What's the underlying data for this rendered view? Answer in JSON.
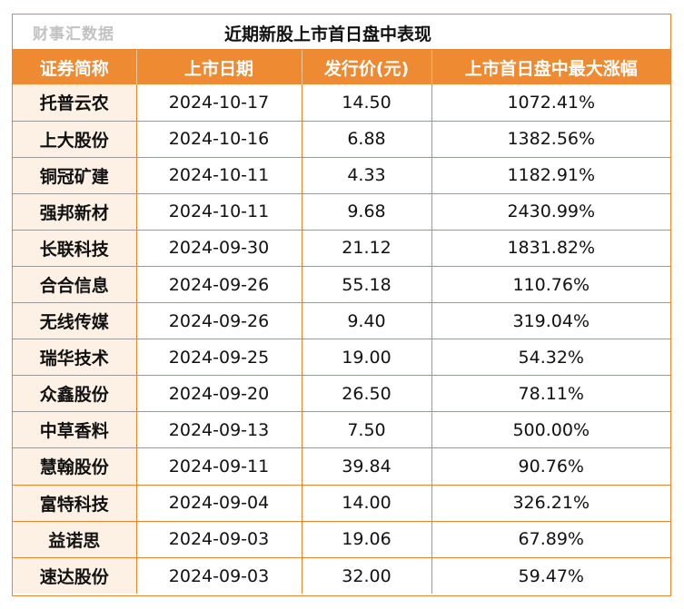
{
  "header": {
    "source": "财事汇数据",
    "title": "近期新股上市首日盘中表现"
  },
  "columns": [
    "证券简称",
    "上市日期",
    "发行价(元)",
    "上市首日盘中最大涨幅"
  ],
  "rows": [
    {
      "name": "托普云农",
      "date": "2024-10-17",
      "price": "14.50",
      "max_gain": "1072.41%"
    },
    {
      "name": "上大股份",
      "date": "2024-10-16",
      "price": "6.88",
      "max_gain": "1382.56%"
    },
    {
      "name": "铜冠矿建",
      "date": "2024-10-11",
      "price": "4.33",
      "max_gain": "1182.91%"
    },
    {
      "name": "强邦新材",
      "date": "2024-10-11",
      "price": "9.68",
      "max_gain": "2430.99%"
    },
    {
      "name": "长联科技",
      "date": "2024-09-30",
      "price": "21.12",
      "max_gain": "1831.82%"
    },
    {
      "name": "合合信息",
      "date": "2024-09-26",
      "price": "55.18",
      "max_gain": "110.76%"
    },
    {
      "name": "无线传媒",
      "date": "2024-09-26",
      "price": "9.40",
      "max_gain": "319.04%"
    },
    {
      "name": "瑞华技术",
      "date": "2024-09-25",
      "price": "19.00",
      "max_gain": "54.32%"
    },
    {
      "name": "众鑫股份",
      "date": "2024-09-20",
      "price": "26.50",
      "max_gain": "78.11%"
    },
    {
      "name": "中草香料",
      "date": "2024-09-13",
      "price": "7.50",
      "max_gain": "500.00%"
    },
    {
      "name": "慧翰股份",
      "date": "2024-09-11",
      "price": "39.84",
      "max_gain": "90.76%"
    },
    {
      "name": "富特科技",
      "date": "2024-09-04",
      "price": "14.00",
      "max_gain": "326.21%"
    },
    {
      "name": "益诺思",
      "date": "2024-09-03",
      "price": "19.06",
      "max_gain": "67.89%"
    },
    {
      "name": "速达股份",
      "date": "2024-09-03",
      "price": "32.00",
      "max_gain": "59.47%"
    }
  ],
  "colors": {
    "header_bg": "#ee8a32",
    "border": "#e9862f",
    "name_cell_bg": "#fdf1e5",
    "source_text": "#c2c2c2"
  }
}
